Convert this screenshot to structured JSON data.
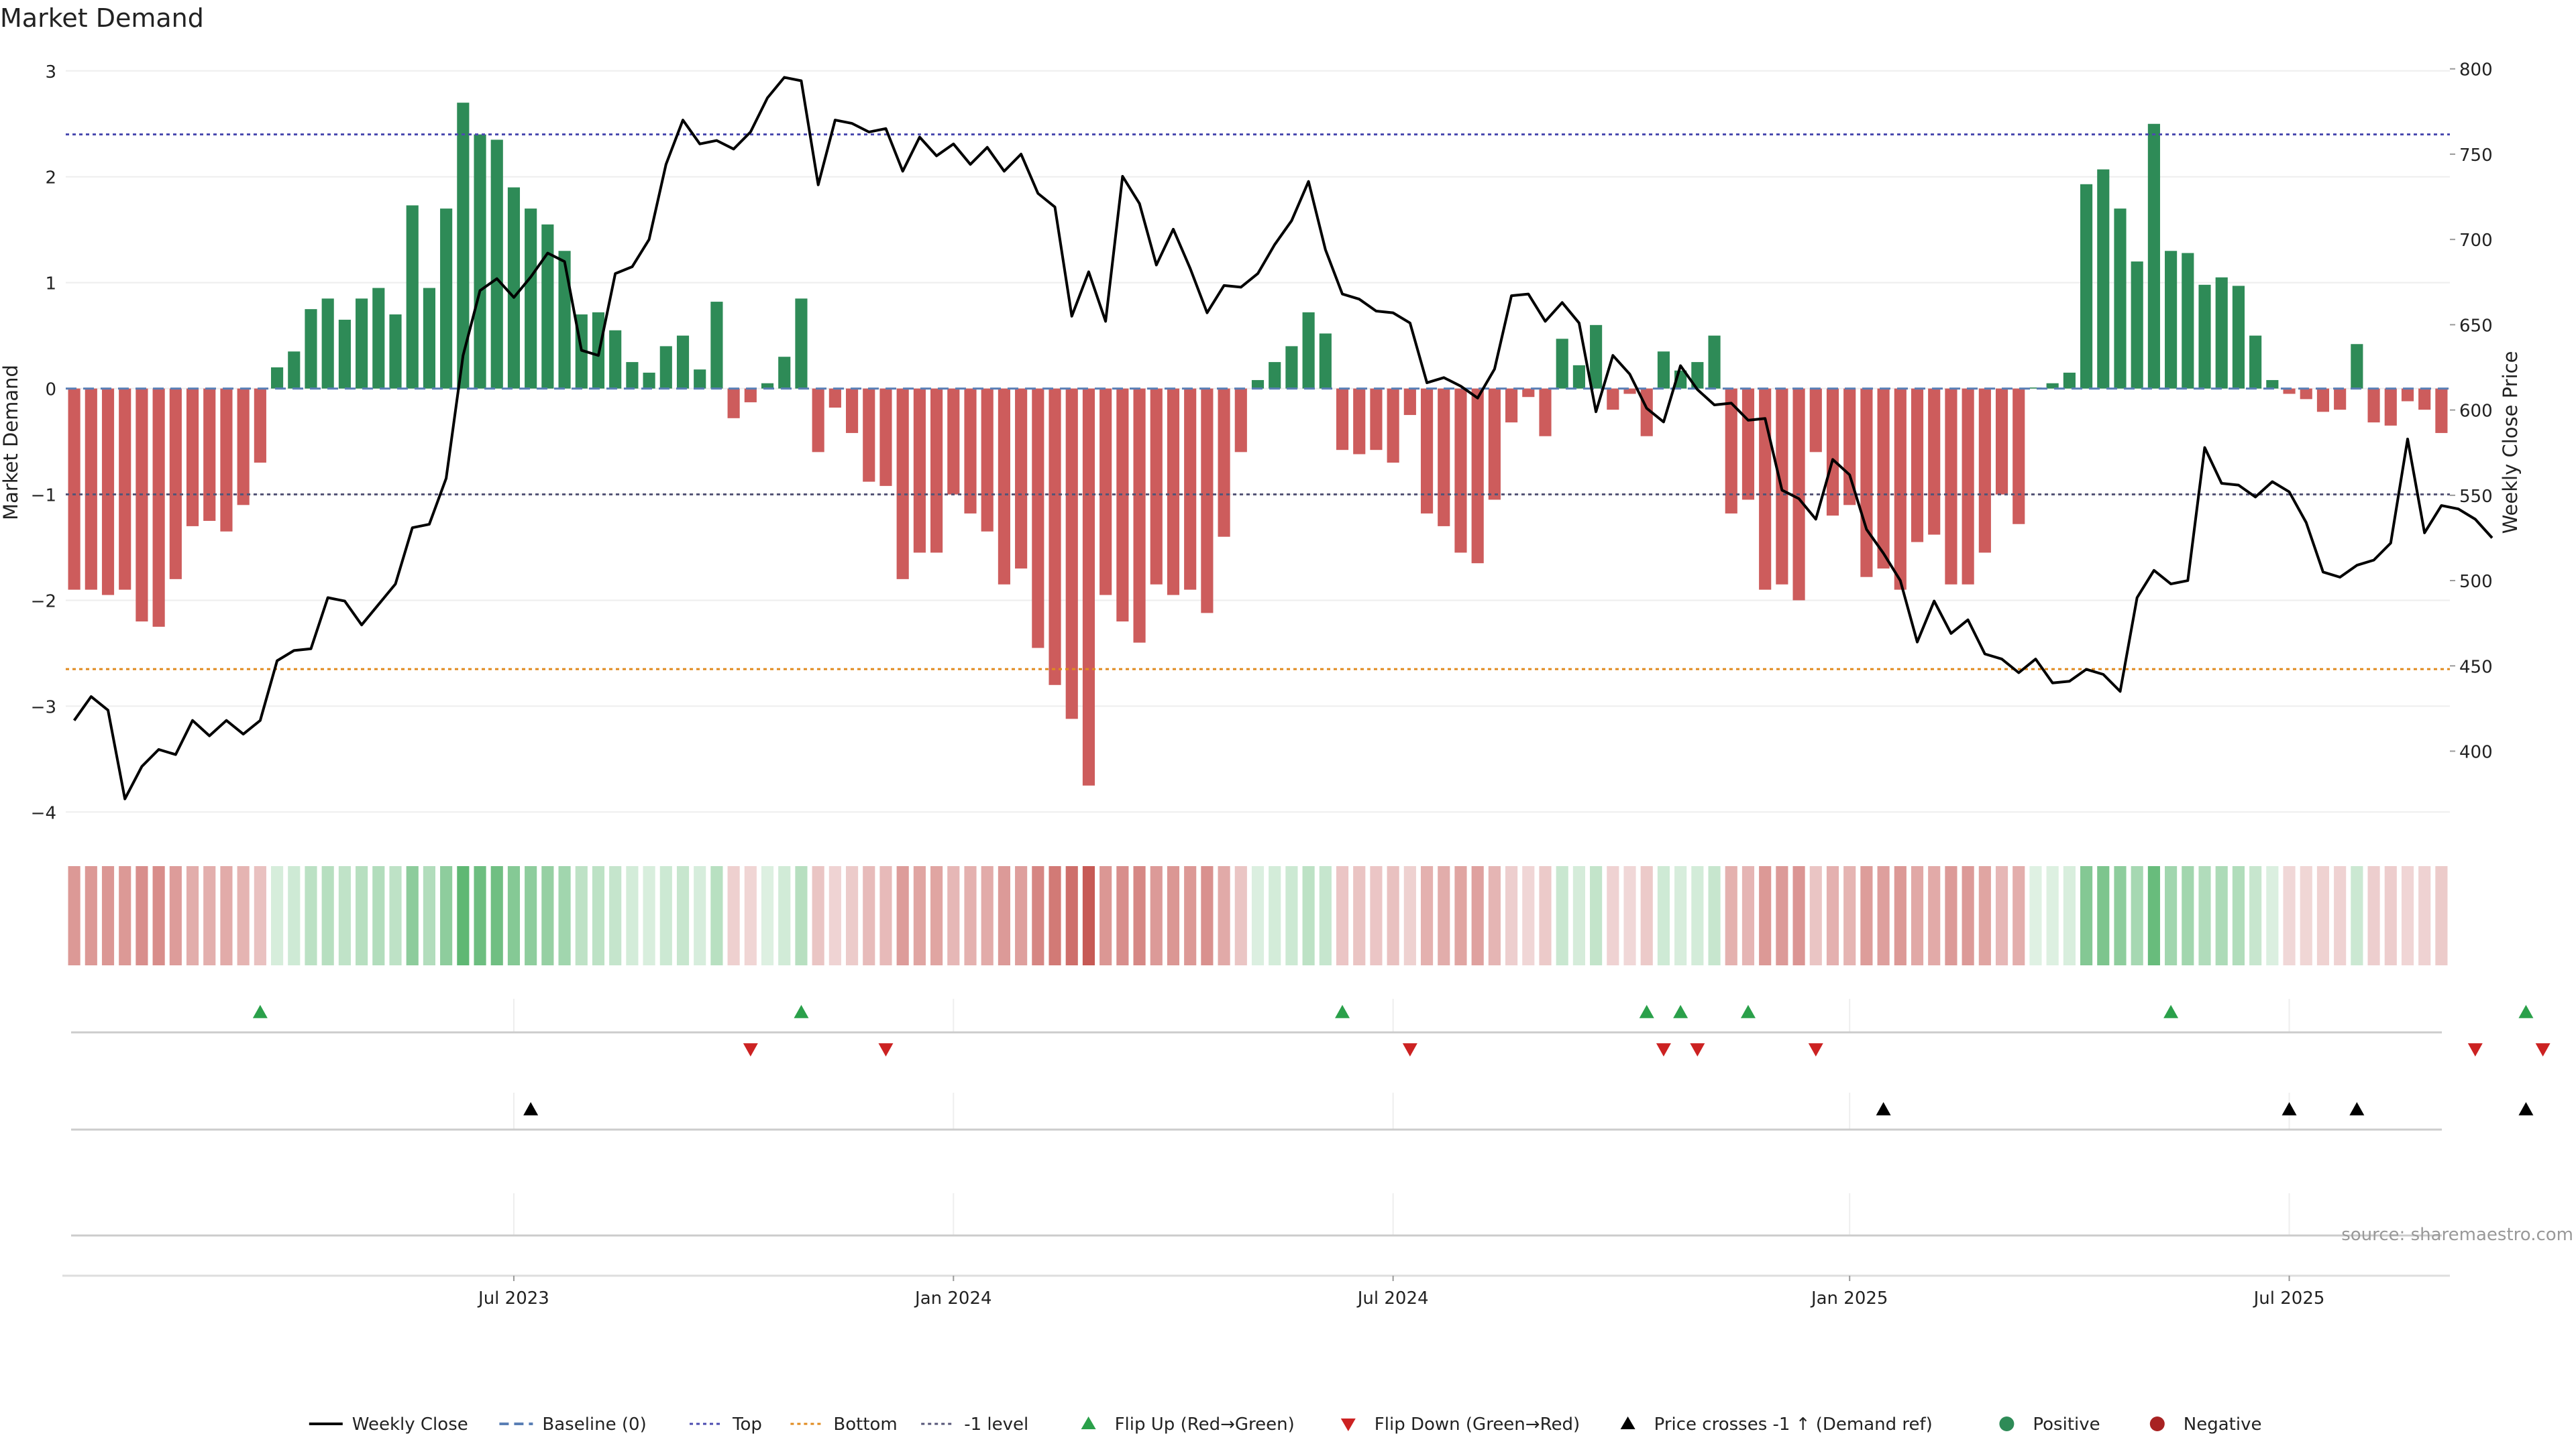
{
  "title": "Market Demand",
  "source": "source: sharemaestro.com",
  "colors": {
    "positive": "#2e8b57",
    "negative": "#cd5c5c",
    "line": "#000000",
    "top_line": "#4b4bb0",
    "bottom_line": "#e08a1e",
    "minus1_line": "#555577",
    "baseline": "#5a7fb5",
    "flip_up": "#2aa04a",
    "flip_down": "#cc2222",
    "cross": "#000000",
    "heat_pos_strong": "#5fb874",
    "heat_pos_weak": "#dff1e3",
    "heat_neg_weak": "#f1d9d9",
    "heat_neg_strong": "#c75a55"
  },
  "chart_data": {
    "type": "bar",
    "title": "Market Demand",
    "ylabel_left": "Market Demand",
    "ylabel_right": "Weekly Close Price",
    "ylim_left": [
      -4.15,
      3.1
    ],
    "ylim_right": [
      355,
      805
    ],
    "yticks_left": [
      "3",
      "2",
      "1",
      "0",
      "−1",
      "−2",
      "−3",
      "−4"
    ],
    "yticks_left_values": [
      3,
      2,
      1,
      0,
      -1,
      -2,
      -3,
      -4
    ],
    "yticks_right": [
      "800",
      "750",
      "700",
      "650",
      "600",
      "550",
      "500",
      "450",
      "400"
    ],
    "yticks_right_values": [
      800,
      750,
      700,
      650,
      600,
      550,
      500,
      450,
      400
    ],
    "x_start": "2023-01-02",
    "x_end": "2025-11-10",
    "x_ticks": [
      {
        "date": "2023-07-03",
        "label": "Jul 2023"
      },
      {
        "date": "2024-01-01",
        "label": "Jan 2024"
      },
      {
        "date": "2024-07-01",
        "label": "Jul 2024"
      },
      {
        "date": "2025-01-06",
        "label": "Jan 2025"
      },
      {
        "date": "2025-07-07",
        "label": "Jul 2025"
      }
    ],
    "reference_lines": {
      "top": 2.4,
      "bottom": -2.65,
      "minus_one": -1,
      "baseline": 0
    },
    "grid": true,
    "legend_position": "bottom",
    "demand": [
      -1.9,
      -1.9,
      -1.95,
      -1.9,
      -2.2,
      -2.25,
      -1.8,
      -1.3,
      -1.25,
      -1.35,
      -1.1,
      -0.7,
      0.2,
      0.35,
      0.75,
      0.85,
      0.65,
      0.85,
      0.95,
      0.7,
      1.73,
      0.95,
      1.7,
      2.7,
      2.4,
      2.35,
      1.9,
      1.7,
      1.55,
      1.3,
      0.7,
      0.72,
      0.55,
      0.25,
      0.15,
      0.4,
      0.5,
      0.18,
      0.82,
      -0.28,
      -0.13,
      0.05,
      0.3,
      0.85,
      -0.6,
      -0.18,
      -0.42,
      -0.88,
      -0.92,
      -1.8,
      -1.55,
      -1.55,
      -1.0,
      -1.18,
      -1.35,
      -1.85,
      -1.7,
      -2.45,
      -2.8,
      -3.12,
      -3.75,
      -1.95,
      -2.2,
      -2.4,
      -1.85,
      -1.95,
      -1.9,
      -2.12,
      -1.4,
      -0.6,
      0.08,
      0.25,
      0.4,
      0.72,
      0.52,
      -0.58,
      -0.62,
      -0.58,
      -0.7,
      -0.25,
      -1.18,
      -1.3,
      -1.55,
      -1.65,
      -1.05,
      -0.32,
      -0.08,
      -0.45,
      0.47,
      0.22,
      0.6,
      -0.2,
      -0.05,
      -0.45,
      0.35,
      0.17,
      0.25,
      0.5,
      -1.18,
      -1.05,
      -1.9,
      -1.85,
      -2.0,
      -0.6,
      -1.2,
      -1.1,
      -1.78,
      -1.7,
      -1.9,
      -1.45,
      -1.38,
      -1.85,
      -1.85,
      -1.55,
      -1.0,
      -1.28,
      0.01,
      0.05,
      0.15,
      1.93,
      2.07,
      1.7,
      1.2,
      2.5,
      1.3,
      1.28,
      0.98,
      1.05,
      0.97,
      0.5,
      0.08,
      -0.05,
      -0.1,
      -0.22,
      -0.2,
      0.42,
      -0.32,
      -0.35,
      -0.12,
      -0.2,
      -0.42
    ],
    "weekly_close": [
      418,
      432,
      424,
      372,
      391,
      401,
      398,
      418,
      409,
      418,
      410,
      418,
      453,
      459,
      460,
      490,
      488,
      474,
      486,
      498,
      531,
      533,
      560,
      632,
      670,
      677,
      666,
      678,
      692,
      687,
      635,
      632,
      680,
      684,
      700,
      744,
      770,
      756,
      758,
      753,
      763,
      783,
      795,
      793,
      732,
      770,
      768,
      763,
      765,
      740,
      760,
      749,
      756,
      744,
      754,
      740,
      750,
      727,
      719,
      655,
      681,
      652,
      737,
      721,
      685,
      706,
      683,
      657,
      673,
      672,
      680,
      697,
      711,
      734,
      694,
      668,
      665,
      658,
      657,
      651,
      616,
      619,
      614,
      607,
      624,
      667,
      668,
      652,
      663,
      651,
      599,
      632,
      621,
      601,
      593,
      626,
      612,
      603,
      604,
      594,
      595,
      553,
      548,
      536,
      571,
      562,
      530,
      516,
      500,
      464,
      488,
      469,
      477,
      457,
      454,
      446,
      454,
      440,
      441,
      448,
      445,
      435,
      490,
      506,
      498,
      500,
      578,
      557,
      556,
      549,
      558,
      552,
      534,
      505,
      502,
      509,
      512,
      522,
      583,
      528,
      544,
      542,
      536,
      525
    ],
    "flip_up_dates": [
      "2023-03-20",
      "2023-10-30",
      "2024-06-10",
      "2024-10-14",
      "2024-10-28",
      "2024-11-25",
      "2025-05-19",
      "2025-10-13"
    ],
    "flip_down_dates": [
      "2023-10-09",
      "2023-12-04",
      "2024-07-08",
      "2024-10-21",
      "2024-11-04",
      "2024-12-23",
      "2025-09-22",
      "2025-10-20"
    ],
    "price_cross_dates": [
      "2023-07-10",
      "2025-01-20",
      "2025-07-07",
      "2025-08-04",
      "2025-10-13"
    ]
  },
  "legend": [
    {
      "label": "Weekly Close",
      "symbol": "line",
      "color": "#000000"
    },
    {
      "label": "Baseline (0)",
      "symbol": "dashed",
      "color": "#5a7fb5"
    },
    {
      "label": "Top",
      "symbol": "dotted",
      "color": "#4b4bb0"
    },
    {
      "label": "Bottom",
      "symbol": "dotted",
      "color": "#e08a1e"
    },
    {
      "label": "-1 level",
      "symbol": "dotted",
      "color": "#555577"
    },
    {
      "label": "Flip Up (Red→Green)",
      "symbol": "triangle-up",
      "color": "#2aa04a"
    },
    {
      "label": "Flip Down (Green→Red)",
      "symbol": "triangle-down",
      "color": "#cc2222"
    },
    {
      "label": "Price crosses -1 ↑ (Demand ref)",
      "symbol": "triangle-up",
      "color": "#000000"
    },
    {
      "label": "Positive",
      "symbol": "circle",
      "color": "#2e8b57"
    },
    {
      "label": "Negative",
      "symbol": "circle",
      "color": "#a82222"
    }
  ]
}
